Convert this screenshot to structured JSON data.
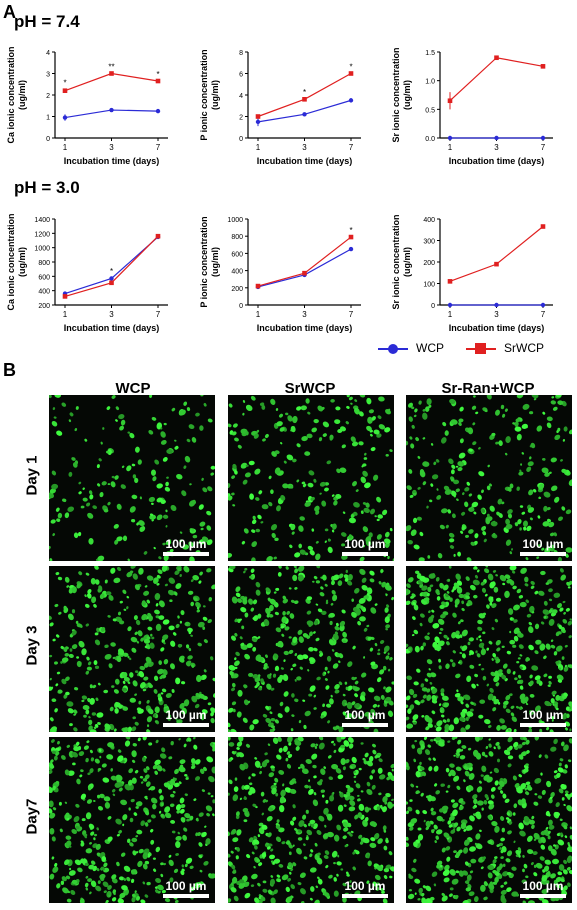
{
  "panel_labels": {
    "a": "A",
    "b": "B"
  },
  "ph_labels": {
    "top": "pH = 7.4",
    "bottom": "pH = 3.0"
  },
  "legend": {
    "wcp": "WCP",
    "srwcp": "SrWCP",
    "colors": {
      "wcp": "#2b2bd6",
      "srwcp": "#e02020"
    }
  },
  "chart_data": [
    {
      "type": "line",
      "group": "pH = 7.4",
      "xlabel": "Incubation time (days)",
      "ylabel": [
        "Ca ionic concentration",
        "(ug/ml)"
      ],
      "categories": [
        "1",
        "3",
        "7"
      ],
      "ylim": [
        0,
        4
      ],
      "yticks": [
        "0",
        "1",
        "2",
        "3",
        "4"
      ],
      "series": [
        {
          "name": "WCP",
          "values": [
            0.95,
            1.3,
            1.25
          ],
          "err": [
            0.15,
            0.05,
            0.05
          ]
        },
        {
          "name": "SrWCP",
          "values": [
            2.2,
            3.0,
            2.65
          ],
          "err": [
            0.1,
            0.05,
            0.05
          ]
        }
      ],
      "annotations": [
        {
          "x": "1",
          "label": "*"
        },
        {
          "x": "3",
          "label": "**"
        },
        {
          "x": "7",
          "label": "*"
        }
      ]
    },
    {
      "type": "line",
      "group": "pH = 7.4",
      "xlabel": "Incubation time (days)",
      "ylabel": [
        "P ionic concentration",
        "(ug/ml)"
      ],
      "categories": [
        "1",
        "3",
        "7"
      ],
      "ylim": [
        0,
        8
      ],
      "yticks": [
        "0",
        "2",
        "4",
        "6",
        "8"
      ],
      "series": [
        {
          "name": "WCP",
          "values": [
            1.5,
            2.2,
            3.5
          ],
          "err": [
            0.4,
            0.1,
            0.2
          ]
        },
        {
          "name": "SrWCP",
          "values": [
            2.0,
            3.6,
            6.0
          ],
          "err": [
            0.1,
            0.1,
            0.1
          ]
        }
      ],
      "annotations": [
        {
          "x": "3",
          "label": "*"
        },
        {
          "x": "7",
          "label": "*"
        }
      ]
    },
    {
      "type": "line",
      "group": "pH = 7.4",
      "xlabel": "Incubation time (days)",
      "ylabel": [
        "Sr ionic concentration",
        "(ug/ml)"
      ],
      "categories": [
        "1",
        "3",
        "7"
      ],
      "ylim": [
        0,
        1.5
      ],
      "yticks": [
        "0.0",
        "0.5",
        "1.0",
        "1.5"
      ],
      "series": [
        {
          "name": "WCP",
          "values": [
            0,
            0,
            0
          ],
          "err": [
            0,
            0,
            0
          ]
        },
        {
          "name": "SrWCP",
          "values": [
            0.65,
            1.4,
            1.25
          ],
          "err": [
            0.15,
            0.02,
            0.02
          ]
        }
      ],
      "annotations": []
    },
    {
      "type": "line",
      "group": "pH = 3.0",
      "xlabel": "Incubation time (days)",
      "ylabel": [
        "Ca ionic concentration",
        "(ug/ml)"
      ],
      "categories": [
        "1",
        "3",
        "7"
      ],
      "ylim": [
        200,
        1400
      ],
      "yticks": [
        "200",
        "400",
        "600",
        "800",
        "1000",
        "1200",
        "1400"
      ],
      "series": [
        {
          "name": "WCP",
          "values": [
            360,
            570,
            1150
          ],
          "err": [
            20,
            20,
            10
          ]
        },
        {
          "name": "SrWCP",
          "values": [
            320,
            510,
            1160
          ],
          "err": [
            15,
            20,
            10
          ]
        }
      ],
      "annotations": [
        {
          "x": "3",
          "label": "*"
        }
      ]
    },
    {
      "type": "line",
      "group": "pH = 3.0",
      "xlabel": "Incubation time (days)",
      "ylabel": [
        "P ionic concentration",
        "(ug/ml)"
      ],
      "categories": [
        "1",
        "3",
        "7"
      ],
      "ylim": [
        0,
        1000
      ],
      "yticks": [
        "0",
        "200",
        "400",
        "600",
        "800",
        "1000"
      ],
      "series": [
        {
          "name": "WCP",
          "values": [
            210,
            350,
            650
          ],
          "err": [
            10,
            10,
            10
          ]
        },
        {
          "name": "SrWCP",
          "values": [
            220,
            370,
            790
          ],
          "err": [
            10,
            10,
            15
          ]
        }
      ],
      "annotations": [
        {
          "x": "7",
          "label": "*"
        }
      ]
    },
    {
      "type": "line",
      "group": "pH = 3.0",
      "xlabel": "Incubation time (days)",
      "ylabel": [
        "Sr ionic concentration",
        "(ug/ml)"
      ],
      "categories": [
        "1",
        "3",
        "7"
      ],
      "ylim": [
        0,
        400
      ],
      "yticks": [
        "0",
        "100",
        "200",
        "300",
        "400"
      ],
      "series": [
        {
          "name": "WCP",
          "values": [
            0,
            0,
            0
          ],
          "err": [
            0,
            0,
            0
          ]
        },
        {
          "name": "SrWCP",
          "values": [
            110,
            190,
            365
          ],
          "err": [
            3,
            3,
            3
          ]
        }
      ],
      "annotations": []
    }
  ],
  "micrographs": {
    "columns": [
      "WCP",
      "SrWCP",
      "Sr-Ran+WCP"
    ],
    "rows": [
      "Day 1",
      "Day 3",
      "Day7"
    ],
    "scale_label": "100 µm",
    "density": [
      [
        0.35,
        0.45,
        0.5
      ],
      [
        0.7,
        0.75,
        0.9
      ],
      [
        0.8,
        0.85,
        0.95
      ]
    ],
    "colors": {
      "cell": "#3ee03e",
      "background": "#050805"
    }
  }
}
